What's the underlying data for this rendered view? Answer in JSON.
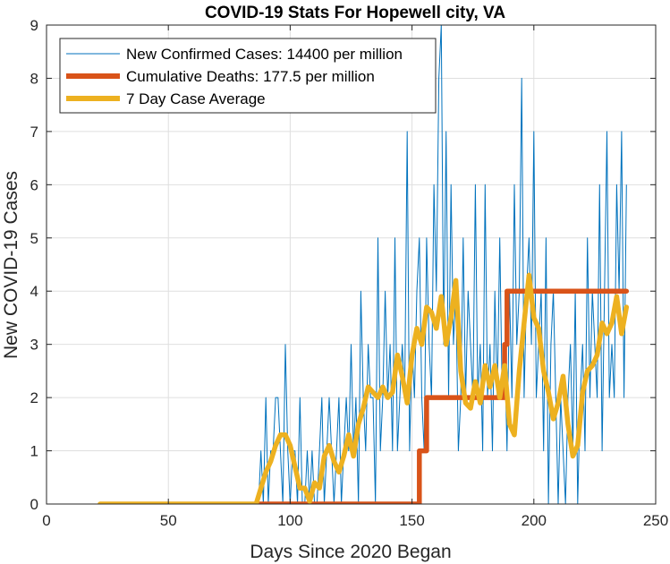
{
  "chart_data": {
    "type": "line",
    "title": "COVID-19 Stats For Hopewell city, VA",
    "xlabel": "Days Since 2020 Began",
    "ylabel": "New COVID-19 Cases",
    "xlim": [
      0,
      250
    ],
    "ylim": [
      0,
      9
    ],
    "xticks": [
      0,
      50,
      100,
      150,
      200,
      250
    ],
    "yticks": [
      0,
      1,
      2,
      3,
      4,
      5,
      6,
      7,
      8,
      9
    ],
    "grid": true,
    "legend_position": "top-left",
    "series": [
      {
        "name": "New Confirmed Cases: 14400 per million",
        "color": "#0072BD",
        "style": "thin",
        "x": [
          87,
          88,
          89,
          90,
          91,
          92,
          93,
          94,
          95,
          96,
          97,
          98,
          99,
          100,
          101,
          102,
          103,
          104,
          105,
          106,
          107,
          108,
          109,
          110,
          111,
          112,
          113,
          114,
          115,
          116,
          117,
          118,
          119,
          120,
          121,
          122,
          123,
          124,
          125,
          126,
          127,
          128,
          129,
          130,
          131,
          132,
          133,
          134,
          135,
          136,
          137,
          138,
          139,
          140,
          141,
          142,
          143,
          144,
          145,
          146,
          147,
          148,
          149,
          150,
          151,
          152,
          153,
          154,
          155,
          156,
          157,
          158,
          159,
          160,
          161,
          162,
          163,
          164,
          165,
          166,
          167,
          168,
          169,
          170,
          171,
          172,
          173,
          174,
          175,
          176,
          177,
          178,
          179,
          180,
          181,
          182,
          183,
          184,
          185,
          186,
          187,
          188,
          189,
          190,
          191,
          192,
          193,
          194,
          195,
          196,
          197,
          198,
          199,
          200,
          201,
          202,
          203,
          204,
          205,
          206,
          207,
          208,
          209,
          210,
          211,
          212,
          213,
          214,
          215,
          216,
          217,
          218,
          219,
          220,
          221,
          222,
          223,
          224,
          225,
          226,
          227,
          228,
          229,
          230,
          231,
          232,
          233,
          234,
          235,
          236,
          237,
          238
        ],
        "y": [
          0,
          1,
          0,
          2,
          0,
          1,
          1,
          2,
          2,
          1,
          0,
          3,
          1,
          0,
          1,
          1,
          0,
          2,
          0,
          0,
          1,
          0,
          1,
          0,
          0,
          1,
          2,
          0,
          1,
          2,
          1,
          0,
          1,
          2,
          0,
          1,
          2,
          1,
          3,
          1,
          2,
          0,
          4,
          2,
          1,
          3,
          2,
          2,
          0,
          5,
          1,
          2,
          4,
          2,
          3,
          1,
          5,
          1,
          2,
          3,
          2,
          7,
          1,
          3,
          2,
          4,
          5,
          2,
          1,
          5,
          3,
          2,
          6,
          4,
          8,
          9,
          3,
          7,
          2,
          6,
          3,
          4,
          1,
          2,
          5,
          2,
          4,
          3,
          2,
          6,
          2,
          3,
          1,
          6,
          2,
          3,
          1,
          4,
          2,
          5,
          2,
          3,
          1,
          4,
          2,
          6,
          3,
          4,
          8,
          2,
          4,
          5,
          3,
          7,
          2,
          3,
          4,
          1,
          5,
          0,
          3,
          4,
          2,
          0,
          2,
          1,
          0,
          2,
          3,
          1,
          4,
          0,
          2,
          3,
          1,
          5,
          2,
          4,
          3,
          2,
          6,
          1,
          4,
          7,
          2,
          3,
          2,
          6,
          4,
          7,
          2,
          6
        ]
      },
      {
        "name": "Cumulative Deaths: 177.5 per million",
        "color": "#D95319",
        "style": "thick",
        "x": [
          87,
          153,
          153,
          156,
          156,
          188,
          188,
          189,
          189,
          238
        ],
        "y": [
          0,
          0,
          1,
          1,
          2,
          2,
          3,
          3,
          4,
          4
        ]
      },
      {
        "name": "7 Day Case Average",
        "color": "#EDB120",
        "style": "thick",
        "x": [
          22,
          86,
          88,
          90,
          92,
          94,
          96,
          98,
          100,
          102,
          104,
          106,
          108,
          110,
          112,
          114,
          116,
          118,
          120,
          122,
          124,
          126,
          128,
          130,
          132,
          134,
          136,
          138,
          140,
          142,
          144,
          146,
          148,
          150,
          152,
          154,
          156,
          158,
          160,
          162,
          164,
          166,
          168,
          170,
          172,
          174,
          176,
          178,
          180,
          182,
          184,
          186,
          188,
          190,
          192,
          194,
          196,
          198,
          200,
          202,
          204,
          206,
          208,
          210,
          212,
          214,
          216,
          218,
          220,
          222,
          224,
          226,
          228,
          230,
          232,
          234,
          236,
          238
        ],
        "y": [
          0,
          0,
          0.3,
          0.6,
          0.8,
          1.1,
          1.3,
          1.3,
          1.1,
          0.7,
          0.3,
          0.3,
          0.05,
          0.4,
          0.3,
          0.9,
          1.1,
          0.8,
          0.6,
          0.9,
          1.3,
          0.9,
          1.5,
          1.8,
          2.2,
          2.1,
          2.0,
          2.2,
          2.0,
          2.1,
          2.8,
          2.4,
          1.9,
          2.8,
          3.3,
          3.0,
          3.7,
          3.6,
          3.3,
          3.9,
          3.0,
          3.5,
          4.2,
          2.5,
          1.9,
          1.8,
          2.3,
          1.9,
          2.6,
          2.2,
          2.6,
          2.0,
          2.6,
          1.5,
          1.3,
          2.5,
          3.4,
          4.3,
          3.5,
          3.3,
          2.5,
          2.1,
          1.6,
          1.9,
          2.4,
          1.5,
          0.9,
          1.1,
          2.1,
          2.5,
          2.6,
          2.8,
          3.4,
          3.2,
          3.4,
          3.9,
          3.2,
          3.7
        ]
      }
    ]
  }
}
